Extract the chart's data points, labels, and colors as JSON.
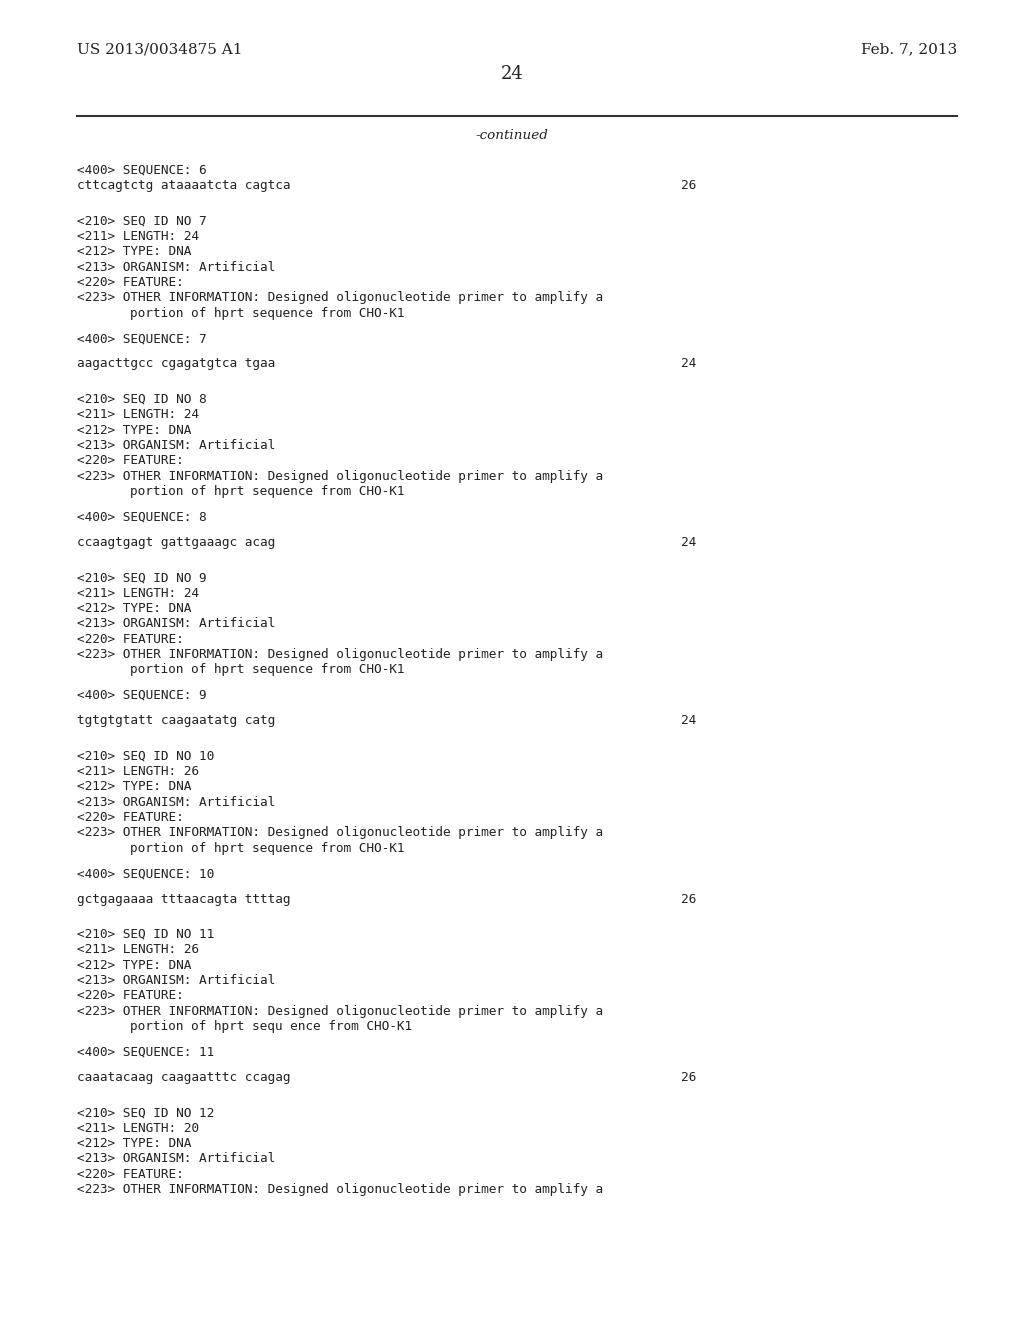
{
  "bg_color": "#ffffff",
  "header_left": "US 2013/0034875 A1",
  "header_right": "Feb. 7, 2013",
  "page_number": "24",
  "continued_text": "-continued",
  "content": [
    {
      "type": "label",
      "text": "<400> SEQUENCE: 6"
    },
    {
      "type": "sequence",
      "seq": "cttcagtctg ataaaatcta cagtca",
      "length": "26"
    },
    {
      "type": "blank"
    },
    {
      "type": "blank"
    },
    {
      "type": "field",
      "text": "<210> SEQ ID NO 7"
    },
    {
      "type": "field",
      "text": "<211> LENGTH: 24"
    },
    {
      "type": "field",
      "text": "<212> TYPE: DNA"
    },
    {
      "type": "field",
      "text": "<213> ORGANISM: Artificial"
    },
    {
      "type": "field",
      "text": "<220> FEATURE:"
    },
    {
      "type": "field",
      "text": "<223> OTHER INFORMATION: Designed oligonucleotide primer to amplify a"
    },
    {
      "type": "field_indent",
      "text": "portion of hprt sequence from CHO-K1"
    },
    {
      "type": "blank"
    },
    {
      "type": "label",
      "text": "<400> SEQUENCE: 7"
    },
    {
      "type": "blank"
    },
    {
      "type": "sequence",
      "seq": "aagacttgcc cgagatgtca tgaa",
      "length": "24"
    },
    {
      "type": "blank"
    },
    {
      "type": "blank"
    },
    {
      "type": "field",
      "text": "<210> SEQ ID NO 8"
    },
    {
      "type": "field",
      "text": "<211> LENGTH: 24"
    },
    {
      "type": "field",
      "text": "<212> TYPE: DNA"
    },
    {
      "type": "field",
      "text": "<213> ORGANISM: Artificial"
    },
    {
      "type": "field",
      "text": "<220> FEATURE:"
    },
    {
      "type": "field",
      "text": "<223> OTHER INFORMATION: Designed oligonucleotide primer to amplify a"
    },
    {
      "type": "field_indent",
      "text": "portion of hprt sequence from CHO-K1"
    },
    {
      "type": "blank"
    },
    {
      "type": "label",
      "text": "<400> SEQUENCE: 8"
    },
    {
      "type": "blank"
    },
    {
      "type": "sequence",
      "seq": "ccaagtgagt gattgaaagc acag",
      "length": "24"
    },
    {
      "type": "blank"
    },
    {
      "type": "blank"
    },
    {
      "type": "field",
      "text": "<210> SEQ ID NO 9"
    },
    {
      "type": "field",
      "text": "<211> LENGTH: 24"
    },
    {
      "type": "field",
      "text": "<212> TYPE: DNA"
    },
    {
      "type": "field",
      "text": "<213> ORGANISM: Artificial"
    },
    {
      "type": "field",
      "text": "<220> FEATURE:"
    },
    {
      "type": "field",
      "text": "<223> OTHER INFORMATION: Designed oligonucleotide primer to amplify a"
    },
    {
      "type": "field_indent",
      "text": "portion of hprt sequence from CHO-K1"
    },
    {
      "type": "blank"
    },
    {
      "type": "label",
      "text": "<400> SEQUENCE: 9"
    },
    {
      "type": "blank"
    },
    {
      "type": "sequence",
      "seq": "tgtgtgtatt caagaatatg catg",
      "length": "24"
    },
    {
      "type": "blank"
    },
    {
      "type": "blank"
    },
    {
      "type": "field",
      "text": "<210> SEQ ID NO 10"
    },
    {
      "type": "field",
      "text": "<211> LENGTH: 26"
    },
    {
      "type": "field",
      "text": "<212> TYPE: DNA"
    },
    {
      "type": "field",
      "text": "<213> ORGANISM: Artificial"
    },
    {
      "type": "field",
      "text": "<220> FEATURE:"
    },
    {
      "type": "field",
      "text": "<223> OTHER INFORMATION: Designed oligonucleotide primer to amplify a"
    },
    {
      "type": "field_indent",
      "text": "portion of hprt sequence from CHO-K1"
    },
    {
      "type": "blank"
    },
    {
      "type": "label",
      "text": "<400> SEQUENCE: 10"
    },
    {
      "type": "blank"
    },
    {
      "type": "sequence",
      "seq": "gctgagaaaa tttaacagta ttttag",
      "length": "26"
    },
    {
      "type": "blank"
    },
    {
      "type": "blank"
    },
    {
      "type": "field",
      "text": "<210> SEQ ID NO 11"
    },
    {
      "type": "field",
      "text": "<211> LENGTH: 26"
    },
    {
      "type": "field",
      "text": "<212> TYPE: DNA"
    },
    {
      "type": "field",
      "text": "<213> ORGANISM: Artificial"
    },
    {
      "type": "field",
      "text": "<220> FEATURE:"
    },
    {
      "type": "field",
      "text": "<223> OTHER INFORMATION: Designed oligonucleotide primer to amplify a"
    },
    {
      "type": "field_indent",
      "text": "portion of hprt sequ ence from CHO-K1"
    },
    {
      "type": "blank"
    },
    {
      "type": "label",
      "text": "<400> SEQUENCE: 11"
    },
    {
      "type": "blank"
    },
    {
      "type": "sequence",
      "seq": "caaatacaag caagaatttc ccagag",
      "length": "26"
    },
    {
      "type": "blank"
    },
    {
      "type": "blank"
    },
    {
      "type": "field",
      "text": "<210> SEQ ID NO 12"
    },
    {
      "type": "field",
      "text": "<211> LENGTH: 20"
    },
    {
      "type": "field",
      "text": "<212> TYPE: DNA"
    },
    {
      "type": "field",
      "text": "<213> ORGANISM: Artificial"
    },
    {
      "type": "field",
      "text": "<220> FEATURE:"
    },
    {
      "type": "field",
      "text": "<223> OTHER INFORMATION: Designed oligonucleotide primer to amplify a"
    }
  ]
}
